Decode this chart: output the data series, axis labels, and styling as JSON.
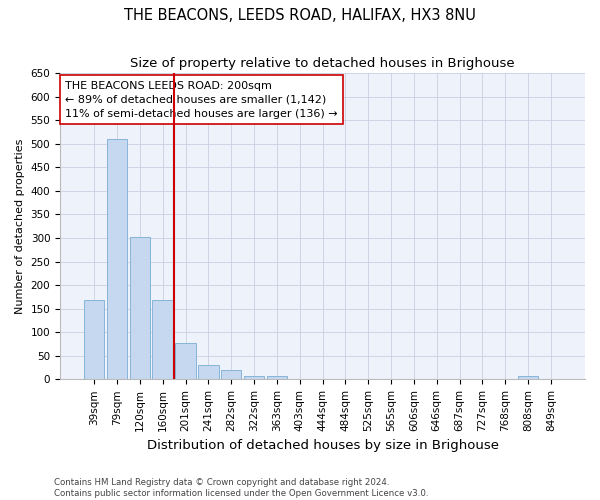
{
  "title": "THE BEACONS, LEEDS ROAD, HALIFAX, HX3 8NU",
  "subtitle": "Size of property relative to detached houses in Brighouse",
  "xlabel": "Distribution of detached houses by size in Brighouse",
  "ylabel": "Number of detached properties",
  "categories": [
    "39sqm",
    "79sqm",
    "120sqm",
    "160sqm",
    "201sqm",
    "241sqm",
    "282sqm",
    "322sqm",
    "363sqm",
    "403sqm",
    "444sqm",
    "484sqm",
    "525sqm",
    "565sqm",
    "606sqm",
    "646sqm",
    "687sqm",
    "727sqm",
    "768sqm",
    "808sqm",
    "849sqm"
  ],
  "values": [
    168,
    510,
    302,
    168,
    78,
    30,
    20,
    8,
    8,
    0,
    0,
    0,
    0,
    0,
    0,
    0,
    0,
    0,
    0,
    8,
    0
  ],
  "bar_color": "#c5d8ef",
  "bar_edgecolor": "#7aadd4",
  "vline_index": 4,
  "vline_color": "#cc0000",
  "annotation_line1": "THE BEACONS LEEDS ROAD: 200sqm",
  "annotation_line2": "← 89% of detached houses are smaller (1,142)",
  "annotation_line3": "11% of semi-detached houses are larger (136) →",
  "annotation_box_facecolor": "#ffffff",
  "annotation_box_edgecolor": "#cc0000",
  "footer_text": "Contains HM Land Registry data © Crown copyright and database right 2024.\nContains public sector information licensed under the Open Government Licence v3.0.",
  "ylim": [
    0,
    650
  ],
  "yticks": [
    0,
    50,
    100,
    150,
    200,
    250,
    300,
    350,
    400,
    450,
    500,
    550,
    600,
    650
  ],
  "bg_color": "#eef2fa",
  "title_fontsize": 10.5,
  "subtitle_fontsize": 9.5,
  "xlabel_fontsize": 9.5,
  "ylabel_fontsize": 8,
  "tick_fontsize": 7.5,
  "annot_fontsize": 8,
  "footer_fontsize": 6.2
}
